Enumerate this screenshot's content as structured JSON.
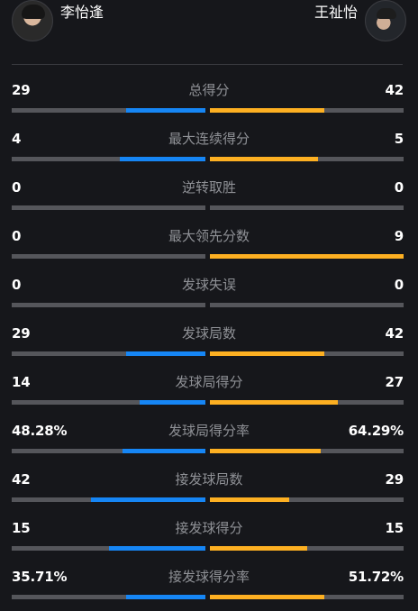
{
  "header": {
    "left_player": {
      "name": "李怡逢",
      "avatar_icon": "player-photo-icon"
    },
    "right_player": {
      "name": "王祉怡",
      "avatar_icon": "player-photo-icon"
    }
  },
  "colors": {
    "left_bar": "#1686f5",
    "right_bar": "#fdb022",
    "track": "#55565b",
    "background": "#16171b",
    "label": "#8f9196"
  },
  "stats": [
    {
      "label": "总得分",
      "left": "29",
      "right": "42",
      "left_fill": 0.41,
      "right_fill": 0.59
    },
    {
      "label": "最大连续得分",
      "left": "4",
      "right": "5",
      "left_fill": 0.44,
      "right_fill": 0.56
    },
    {
      "label": "逆转取胜",
      "left": "0",
      "right": "0",
      "left_fill": 0,
      "right_fill": 0
    },
    {
      "label": "最大领先分数",
      "left": "0",
      "right": "9",
      "left_fill": 0,
      "right_fill": 1
    },
    {
      "label": "发球失误",
      "left": "0",
      "right": "0",
      "left_fill": 0,
      "right_fill": 0
    },
    {
      "label": "发球局数",
      "left": "29",
      "right": "42",
      "left_fill": 0.41,
      "right_fill": 0.59
    },
    {
      "label": "发球局得分",
      "left": "14",
      "right": "27",
      "left_fill": 0.34,
      "right_fill": 0.66
    },
    {
      "label": "发球局得分率",
      "left": "48.28%",
      "right": "64.29%",
      "left_fill": 0.43,
      "right_fill": 0.57
    },
    {
      "label": "接发球局数",
      "left": "42",
      "right": "29",
      "left_fill": 0.59,
      "right_fill": 0.41
    },
    {
      "label": "接发球得分",
      "left": "15",
      "right": "15",
      "left_fill": 0.5,
      "right_fill": 0.5
    },
    {
      "label": "接发球得分率",
      "left": "35.71%",
      "right": "51.72%",
      "left_fill": 0.41,
      "right_fill": 0.59
    }
  ]
}
